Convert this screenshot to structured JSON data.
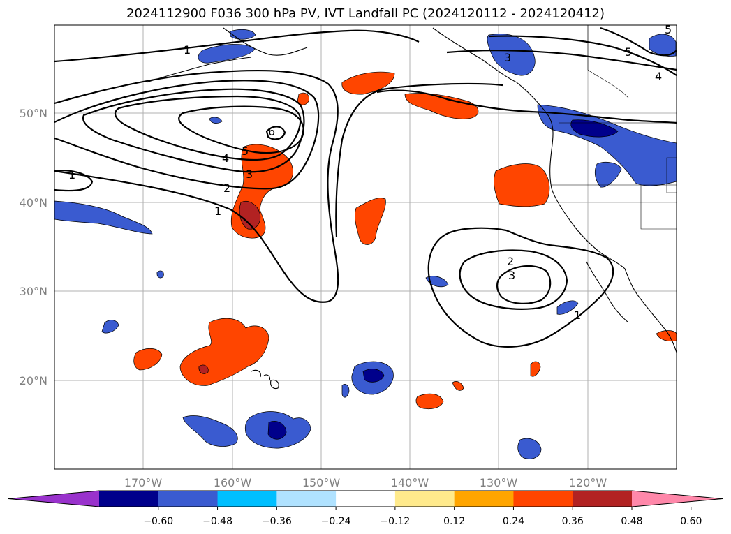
{
  "title": "2024112900 F036 300 hPa PV, IVT Landfall PC (2024120112 - 2024120412)",
  "lat_labels": [
    "50°N",
    "40°N",
    "30°N",
    "20°N"
  ],
  "lon_labels": [
    "170°W",
    "160°W",
    "150°W",
    "140°W",
    "130°W",
    "120°W"
  ],
  "colorbar": {
    "colors": [
      "#9932cc",
      "#00008b",
      "#3a5bd0",
      "#00bfff",
      "#b0e2ff",
      "#ffffff",
      "#ffea8c",
      "#ffa500",
      "#ff4500",
      "#b22222",
      "#ff88aa"
    ],
    "labels": [
      "−0.60",
      "−0.48",
      "−0.36",
      "−0.24",
      "−0.12",
      "0.12",
      "0.24",
      "0.36",
      "0.48",
      "0.60"
    ]
  },
  "contour_labels": {
    "west": [
      "1",
      "1",
      "2",
      "3",
      "4",
      "5",
      "6"
    ],
    "east": [
      "1",
      "2",
      "3"
    ],
    "northeast": [
      "3",
      "4",
      "5",
      "5"
    ]
  }
}
